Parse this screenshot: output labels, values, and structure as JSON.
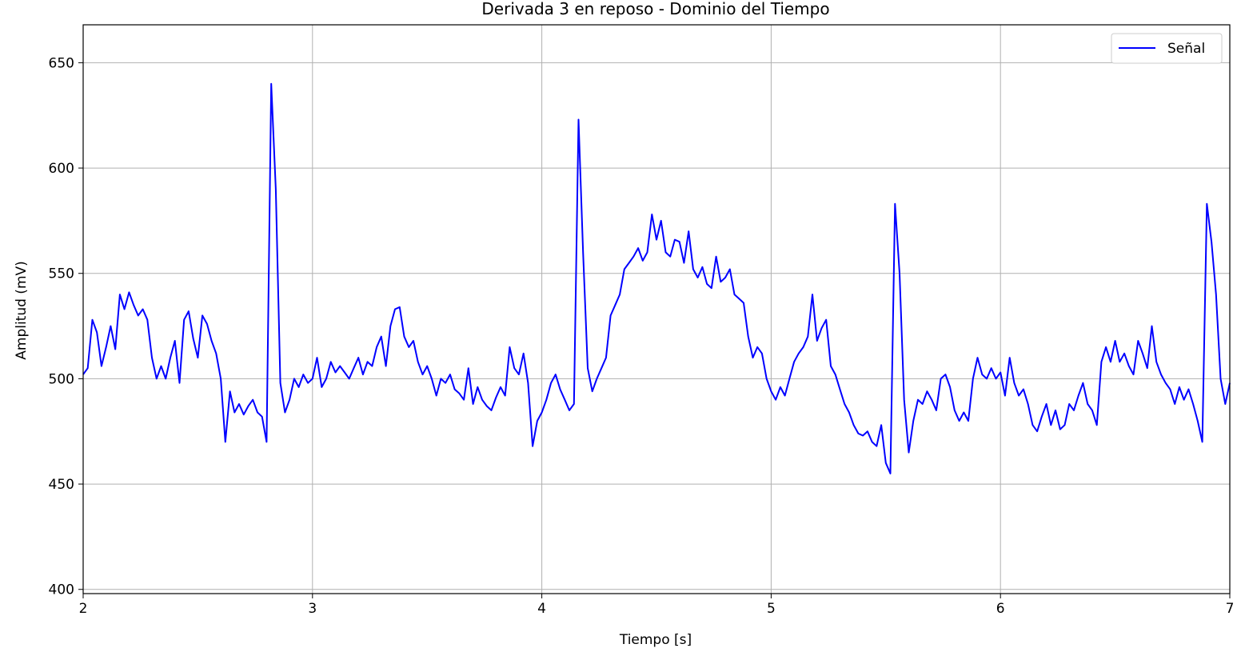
{
  "chart_data": {
    "type": "line",
    "title": "Derivada 3 en reposo - Dominio del Tiempo",
    "xlabel": "Tiempo [s]",
    "ylabel": "Amplitud (mV)",
    "xlim": [
      2,
      7
    ],
    "ylim": [
      398,
      668
    ],
    "x_ticks": [
      2,
      3,
      4,
      5,
      6,
      7
    ],
    "y_ticks": [
      400,
      450,
      500,
      550,
      600,
      650
    ],
    "grid": true,
    "legend_position": "top-right",
    "series": [
      {
        "name": "Señal",
        "color": "#0000ff",
        "points": [
          [
            2.0,
            502
          ],
          [
            2.02,
            505
          ],
          [
            2.04,
            528
          ],
          [
            2.06,
            522
          ],
          [
            2.08,
            506
          ],
          [
            2.1,
            515
          ],
          [
            2.12,
            525
          ],
          [
            2.14,
            514
          ],
          [
            2.16,
            540
          ],
          [
            2.18,
            533
          ],
          [
            2.2,
            541
          ],
          [
            2.22,
            535
          ],
          [
            2.24,
            530
          ],
          [
            2.26,
            533
          ],
          [
            2.28,
            528
          ],
          [
            2.3,
            510
          ],
          [
            2.32,
            500
          ],
          [
            2.34,
            506
          ],
          [
            2.36,
            500
          ],
          [
            2.38,
            510
          ],
          [
            2.4,
            518
          ],
          [
            2.42,
            498
          ],
          [
            2.44,
            528
          ],
          [
            2.46,
            532
          ],
          [
            2.48,
            519
          ],
          [
            2.5,
            510
          ],
          [
            2.52,
            530
          ],
          [
            2.54,
            526
          ],
          [
            2.56,
            518
          ],
          [
            2.58,
            512
          ],
          [
            2.6,
            500
          ],
          [
            2.62,
            470
          ],
          [
            2.64,
            494
          ],
          [
            2.66,
            484
          ],
          [
            2.68,
            488
          ],
          [
            2.7,
            483
          ],
          [
            2.72,
            487
          ],
          [
            2.74,
            490
          ],
          [
            2.76,
            484
          ],
          [
            2.78,
            482
          ],
          [
            2.8,
            470
          ],
          [
            2.82,
            640
          ],
          [
            2.84,
            590
          ],
          [
            2.86,
            498
          ],
          [
            2.88,
            484
          ],
          [
            2.9,
            490
          ],
          [
            2.92,
            500
          ],
          [
            2.94,
            496
          ],
          [
            2.96,
            502
          ],
          [
            2.98,
            498
          ],
          [
            3.0,
            500
          ],
          [
            3.02,
            510
          ],
          [
            3.04,
            496
          ],
          [
            3.06,
            500
          ],
          [
            3.08,
            508
          ],
          [
            3.1,
            503
          ],
          [
            3.12,
            506
          ],
          [
            3.14,
            503
          ],
          [
            3.16,
            500
          ],
          [
            3.18,
            505
          ],
          [
            3.2,
            510
          ],
          [
            3.22,
            502
          ],
          [
            3.24,
            508
          ],
          [
            3.26,
            506
          ],
          [
            3.28,
            515
          ],
          [
            3.3,
            520
          ],
          [
            3.32,
            506
          ],
          [
            3.34,
            525
          ],
          [
            3.36,
            533
          ],
          [
            3.38,
            534
          ],
          [
            3.4,
            520
          ],
          [
            3.42,
            515
          ],
          [
            3.44,
            518
          ],
          [
            3.46,
            508
          ],
          [
            3.48,
            502
          ],
          [
            3.5,
            506
          ],
          [
            3.52,
            500
          ],
          [
            3.54,
            492
          ],
          [
            3.56,
            500
          ],
          [
            3.58,
            498
          ],
          [
            3.6,
            502
          ],
          [
            3.62,
            495
          ],
          [
            3.64,
            493
          ],
          [
            3.66,
            490
          ],
          [
            3.68,
            505
          ],
          [
            3.7,
            488
          ],
          [
            3.72,
            496
          ],
          [
            3.74,
            490
          ],
          [
            3.76,
            487
          ],
          [
            3.78,
            485
          ],
          [
            3.8,
            491
          ],
          [
            3.82,
            496
          ],
          [
            3.84,
            492
          ],
          [
            3.86,
            515
          ],
          [
            3.88,
            505
          ],
          [
            3.9,
            502
          ],
          [
            3.92,
            512
          ],
          [
            3.94,
            498
          ],
          [
            3.96,
            468
          ],
          [
            3.98,
            480
          ],
          [
            4.0,
            484
          ],
          [
            4.02,
            490
          ],
          [
            4.04,
            498
          ],
          [
            4.06,
            502
          ],
          [
            4.08,
            495
          ],
          [
            4.1,
            490
          ],
          [
            4.12,
            485
          ],
          [
            4.14,
            488
          ],
          [
            4.16,
            623
          ],
          [
            4.18,
            560
          ],
          [
            4.2,
            505
          ],
          [
            4.22,
            494
          ],
          [
            4.24,
            500
          ],
          [
            4.26,
            505
          ],
          [
            4.28,
            510
          ],
          [
            4.3,
            530
          ],
          [
            4.32,
            535
          ],
          [
            4.34,
            540
          ],
          [
            4.36,
            552
          ],
          [
            4.38,
            555
          ],
          [
            4.4,
            558
          ],
          [
            4.42,
            562
          ],
          [
            4.44,
            556
          ],
          [
            4.46,
            560
          ],
          [
            4.48,
            578
          ],
          [
            4.5,
            566
          ],
          [
            4.52,
            575
          ],
          [
            4.54,
            560
          ],
          [
            4.56,
            558
          ],
          [
            4.58,
            566
          ],
          [
            4.6,
            565
          ],
          [
            4.62,
            555
          ],
          [
            4.64,
            570
          ],
          [
            4.66,
            552
          ],
          [
            4.68,
            548
          ],
          [
            4.7,
            553
          ],
          [
            4.72,
            545
          ],
          [
            4.74,
            543
          ],
          [
            4.76,
            558
          ],
          [
            4.78,
            546
          ],
          [
            4.8,
            548
          ],
          [
            4.82,
            552
          ],
          [
            4.84,
            540
          ],
          [
            4.86,
            538
          ],
          [
            4.88,
            536
          ],
          [
            4.9,
            520
          ],
          [
            4.92,
            510
          ],
          [
            4.94,
            515
          ],
          [
            4.96,
            512
          ],
          [
            4.98,
            500
          ],
          [
            5.0,
            494
          ],
          [
            5.02,
            490
          ],
          [
            5.04,
            496
          ],
          [
            5.06,
            492
          ],
          [
            5.08,
            500
          ],
          [
            5.1,
            508
          ],
          [
            5.12,
            512
          ],
          [
            5.14,
            515
          ],
          [
            5.16,
            520
          ],
          [
            5.18,
            540
          ],
          [
            5.2,
            518
          ],
          [
            5.22,
            524
          ],
          [
            5.24,
            528
          ],
          [
            5.26,
            506
          ],
          [
            5.28,
            502
          ],
          [
            5.3,
            495
          ],
          [
            5.32,
            488
          ],
          [
            5.34,
            484
          ],
          [
            5.36,
            478
          ],
          [
            5.38,
            474
          ],
          [
            5.4,
            473
          ],
          [
            5.42,
            475
          ],
          [
            5.44,
            470
          ],
          [
            5.46,
            468
          ],
          [
            5.48,
            478
          ],
          [
            5.5,
            460
          ],
          [
            5.52,
            455
          ],
          [
            5.54,
            583
          ],
          [
            5.56,
            550
          ],
          [
            5.58,
            490
          ],
          [
            5.6,
            465
          ],
          [
            5.62,
            480
          ],
          [
            5.64,
            490
          ],
          [
            5.66,
            488
          ],
          [
            5.68,
            494
          ],
          [
            5.7,
            490
          ],
          [
            5.72,
            485
          ],
          [
            5.74,
            500
          ],
          [
            5.76,
            502
          ],
          [
            5.78,
            496
          ],
          [
            5.8,
            485
          ],
          [
            5.82,
            480
          ],
          [
            5.84,
            484
          ],
          [
            5.86,
            480
          ],
          [
            5.88,
            500
          ],
          [
            5.9,
            510
          ],
          [
            5.92,
            502
          ],
          [
            5.94,
            500
          ],
          [
            5.96,
            505
          ],
          [
            5.98,
            500
          ],
          [
            6.0,
            503
          ],
          [
            6.02,
            492
          ],
          [
            6.04,
            510
          ],
          [
            6.06,
            498
          ],
          [
            6.08,
            492
          ],
          [
            6.1,
            495
          ],
          [
            6.12,
            488
          ],
          [
            6.14,
            478
          ],
          [
            6.16,
            475
          ],
          [
            6.18,
            482
          ],
          [
            6.2,
            488
          ],
          [
            6.22,
            478
          ],
          [
            6.24,
            485
          ],
          [
            6.26,
            476
          ],
          [
            6.28,
            478
          ],
          [
            6.3,
            488
          ],
          [
            6.32,
            485
          ],
          [
            6.34,
            492
          ],
          [
            6.36,
            498
          ],
          [
            6.38,
            488
          ],
          [
            6.4,
            485
          ],
          [
            6.42,
            478
          ],
          [
            6.44,
            508
          ],
          [
            6.46,
            515
          ],
          [
            6.48,
            508
          ],
          [
            6.5,
            518
          ],
          [
            6.52,
            508
          ],
          [
            6.54,
            512
          ],
          [
            6.56,
            506
          ],
          [
            6.58,
            502
          ],
          [
            6.6,
            518
          ],
          [
            6.62,
            512
          ],
          [
            6.64,
            505
          ],
          [
            6.66,
            525
          ],
          [
            6.68,
            508
          ],
          [
            6.7,
            502
          ],
          [
            6.72,
            498
          ],
          [
            6.74,
            495
          ],
          [
            6.76,
            488
          ],
          [
            6.78,
            496
          ],
          [
            6.8,
            490
          ],
          [
            6.82,
            495
          ],
          [
            6.84,
            488
          ],
          [
            6.86,
            480
          ],
          [
            6.88,
            470
          ],
          [
            6.9,
            583
          ],
          [
            6.92,
            565
          ],
          [
            6.94,
            540
          ],
          [
            6.96,
            500
          ],
          [
            6.98,
            488
          ],
          [
            7.0,
            498
          ]
        ]
      }
    ]
  }
}
